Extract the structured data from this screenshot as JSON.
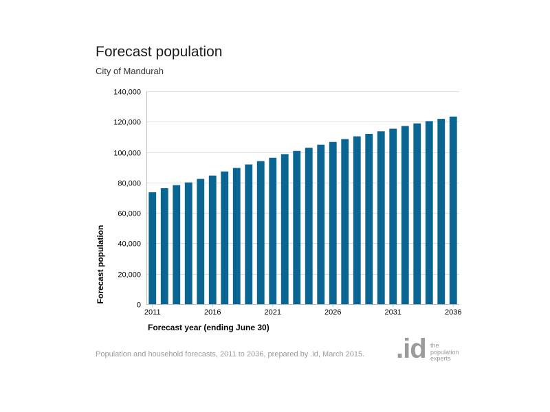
{
  "header": {
    "title": "Forecast population",
    "subtitle": "City of Mandurah"
  },
  "footer": {
    "source_text": "Population and household forecasts, 2011 to 2036, prepared by .id, March 2015."
  },
  "logo": {
    "mark": ".id",
    "tagline": [
      "the",
      "population",
      "experts"
    ]
  },
  "colors": {
    "bar": "#0b6593",
    "grid": "#dcdcdc",
    "axis": "#bdbdbd",
    "logo": "#9b9b9b"
  },
  "chart_data": {
    "type": "bar",
    "title": "Forecast population",
    "subtitle": "City of Mandurah",
    "xlabel": "Forecast year (ending June 30)",
    "ylabel": "Forecast population",
    "categories": [
      "2011",
      "2012",
      "2013",
      "2014",
      "2015",
      "2016",
      "2017",
      "2018",
      "2019",
      "2020",
      "2021",
      "2022",
      "2023",
      "2024",
      "2025",
      "2026",
      "2027",
      "2028",
      "2029",
      "2030",
      "2031",
      "2032",
      "2033",
      "2034",
      "2035",
      "2036"
    ],
    "x_tick_labels": [
      "2011",
      "2016",
      "2021",
      "2026",
      "2031",
      "2036"
    ],
    "values": [
      73600,
      76300,
      78300,
      80100,
      82400,
      84600,
      87300,
      89600,
      91900,
      94100,
      96300,
      98700,
      100800,
      102900,
      104900,
      106700,
      108600,
      110400,
      112000,
      113700,
      115400,
      117200,
      118900,
      120400,
      121900,
      123400
    ],
    "ylim": [
      0,
      140000
    ],
    "y_ticks": [
      0,
      20000,
      40000,
      60000,
      80000,
      100000,
      120000,
      140000
    ],
    "y_tick_labels": [
      "0",
      "20,000",
      "40,000",
      "60,000",
      "80,000",
      "100,000",
      "120,000",
      "140,000"
    ],
    "grid": true
  }
}
